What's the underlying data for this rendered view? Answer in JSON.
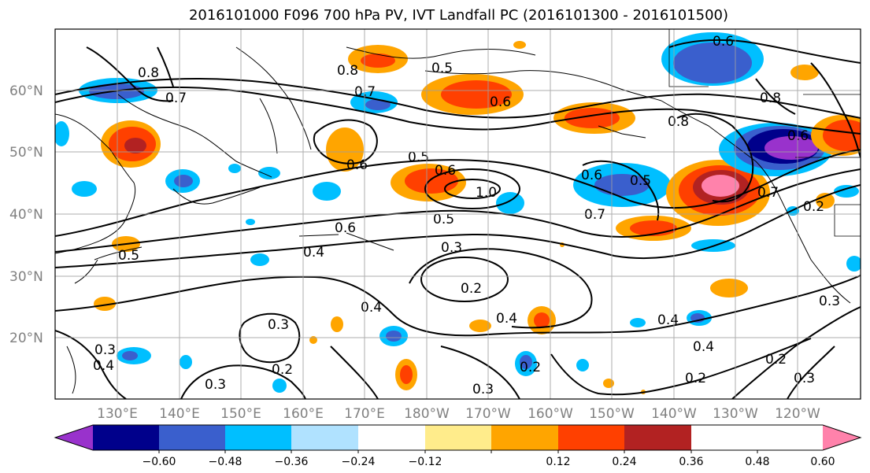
{
  "title": "2016101000 F096 700 hPa PV, IVT Landfall PC (2016101300 - 2016101500)",
  "lat_labels": [
    "60°N",
    "50°N",
    "40°N",
    "30°N",
    "20°N"
  ],
  "lon_labels": [
    "130°E",
    "140°E",
    "150°E",
    "160°E",
    "170°E",
    "180°W",
    "170°W",
    "160°W",
    "150°W",
    "140°W",
    "130°W",
    "120°W"
  ],
  "colorbar": {
    "tick_labels": [
      "−0.60",
      "−0.48",
      "−0.36",
      "−0.24",
      "−0.12",
      "0.12",
      "0.24",
      "0.36",
      "0.48",
      "0.60"
    ],
    "colors": [
      "#9932CC",
      "#00008B",
      "#3A5FCD",
      "#00BFFF",
      "#B0E2FF",
      "#FFFFFF",
      "#FFEC8B",
      "#FFA500",
      "#FF4000",
      "#B22222",
      "#FF82AB"
    ]
  },
  "contour_labels": [
    "0.8",
    "0.5",
    "0.7",
    "0.8",
    "0.7",
    "0.6",
    "0.6",
    "0.8",
    "0.6",
    "0.5",
    "0.6",
    "1.0",
    "0.5",
    "0.6",
    "0.5",
    "0.7",
    "0.7",
    "0.6",
    "0.4",
    "0.3",
    "0.2",
    "0.4",
    "0.4",
    "0.3",
    "0.2",
    "0.3",
    "0.4",
    "0.2",
    "0.4",
    "0.4",
    "0.2",
    "0.3",
    "0.3",
    "0.2",
    "0.3",
    "0.8",
    "0.6",
    "0.5",
    "0.3",
    "0.2"
  ]
}
